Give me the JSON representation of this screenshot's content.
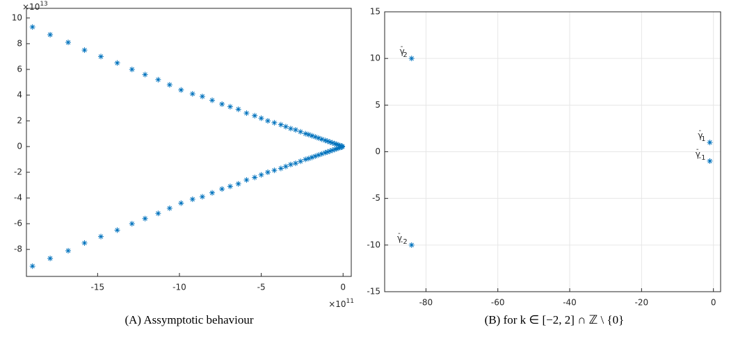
{
  "chart_data": [
    {
      "type": "scatter",
      "caption": "(A) Assymptotic behaviour",
      "grid": false,
      "x_multiplier": {
        "base": "×10",
        "exponent": "11"
      },
      "y_multiplier": {
        "base": "×10",
        "exponent": "13"
      },
      "xlim": [
        -19.35,
        0.5
      ],
      "ylim": [
        -10.1,
        10.75
      ],
      "xticks": [
        -15,
        -10,
        -5,
        0
      ],
      "yticks": [
        -8,
        -6,
        -4,
        -2,
        0,
        2,
        4,
        6,
        8,
        10
      ],
      "series": [
        {
          "color": "#0072bd",
          "x": [
            -18.98,
            -17.9,
            -16.8,
            -15.8,
            -14.8,
            -13.8,
            -12.9,
            -12.1,
            -11.3,
            -10.6,
            -9.9,
            -9.2,
            -8.6,
            -8.0,
            -7.4,
            -6.9,
            -6.4,
            -5.9,
            -5.4,
            -5.0,
            -4.6,
            -4.2,
            -3.8,
            -3.5,
            -3.2,
            -2.9,
            -2.6,
            -2.3,
            -2.1,
            -1.9,
            -1.7,
            -1.5,
            -1.3,
            -1.1,
            -0.95,
            -0.8,
            -0.65,
            -0.5,
            -0.4,
            -0.3,
            -0.2,
            -0.12,
            -0.05
          ],
          "values": [
            9.3,
            8.7,
            8.1,
            7.5,
            7.0,
            6.5,
            6.0,
            5.6,
            5.2,
            4.8,
            4.4,
            4.1,
            3.9,
            3.6,
            3.3,
            3.1,
            2.9,
            2.6,
            2.4,
            2.2,
            2.0,
            1.85,
            1.7,
            1.55,
            1.4,
            1.3,
            1.15,
            1.0,
            0.93,
            0.84,
            0.75,
            0.66,
            0.57,
            0.48,
            0.42,
            0.35,
            0.29,
            0.22,
            0.18,
            0.13,
            0.09,
            0.05,
            0.02
          ]
        },
        {
          "color": "#0072bd",
          "x": [
            -18.98,
            -17.9,
            -16.8,
            -15.8,
            -14.8,
            -13.8,
            -12.9,
            -12.1,
            -11.3,
            -10.6,
            -9.9,
            -9.2,
            -8.6,
            -8.0,
            -7.4,
            -6.9,
            -6.4,
            -5.9,
            -5.4,
            -5.0,
            -4.6,
            -4.2,
            -3.8,
            -3.5,
            -3.2,
            -2.9,
            -2.6,
            -2.3,
            -2.1,
            -1.9,
            -1.7,
            -1.5,
            -1.3,
            -1.1,
            -0.95,
            -0.8,
            -0.65,
            -0.5,
            -0.4,
            -0.3,
            -0.2,
            -0.12,
            -0.05
          ],
          "values": [
            -9.3,
            -8.7,
            -8.1,
            -7.5,
            -7.0,
            -6.5,
            -6.0,
            -5.6,
            -5.2,
            -4.8,
            -4.4,
            -4.1,
            -3.9,
            -3.6,
            -3.3,
            -3.1,
            -2.9,
            -2.6,
            -2.4,
            -2.2,
            -2.0,
            -1.85,
            -1.7,
            -1.55,
            -1.4,
            -1.3,
            -1.15,
            -1.0,
            -0.93,
            -0.84,
            -0.75,
            -0.66,
            -0.57,
            -0.48,
            -0.42,
            -0.35,
            -0.29,
            -0.22,
            -0.18,
            -0.13,
            -0.09,
            -0.05,
            -0.02
          ]
        }
      ]
    },
    {
      "type": "scatter",
      "caption": "(B) for k ∈ [−2, 2] ∩ ℤ \\ {0}",
      "grid": true,
      "xlim": [
        -91.5,
        2
      ],
      "ylim": [
        -15,
        15
      ],
      "xticks": [
        -80,
        -60,
        -40,
        -20,
        0
      ],
      "yticks": [
        -15,
        -10,
        -5,
        0,
        5,
        10,
        15
      ],
      "series": [
        {
          "color": "#0072bd",
          "x": [
            -84,
            -84,
            -1,
            -1
          ],
          "values": [
            10,
            -10,
            1,
            -1
          ],
          "labels": [
            {
              "base": "γ",
              "sup": "-",
              "sub": "2"
            },
            {
              "base": "γ",
              "sup": "-",
              "sub": "-2"
            },
            {
              "base": "γ",
              "sup": "-",
              "sub": "1"
            },
            {
              "base": "γ",
              "sup": "-",
              "sub": "-1"
            }
          ]
        }
      ]
    }
  ]
}
